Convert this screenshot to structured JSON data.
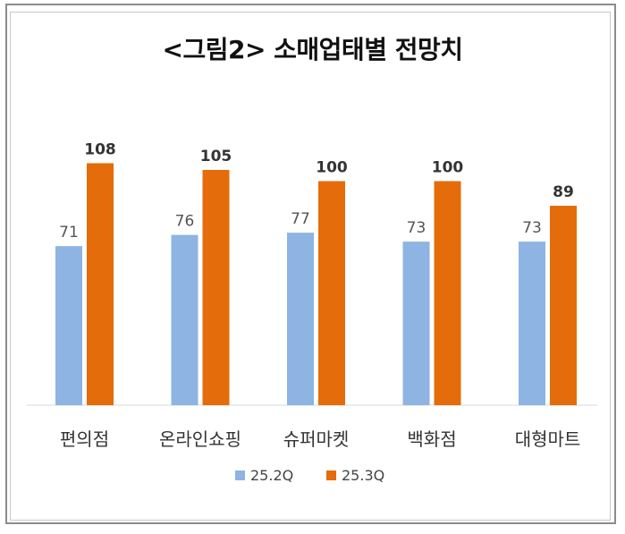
{
  "chart_data": {
    "type": "bar",
    "title": "<그림2> 소매업태별 전망치",
    "categories": [
      "편의점",
      "온라인쇼핑",
      "슈퍼마켓",
      "백화점",
      "대형마트"
    ],
    "series": [
      {
        "name": "25.2Q",
        "values": [
          71,
          76,
          77,
          73,
          73
        ],
        "color": "#8db4e2"
      },
      {
        "name": "25.3Q",
        "values": [
          108,
          105,
          100,
          100,
          89
        ],
        "color": "#e46c0a"
      }
    ],
    "ylim": [
      0,
      120
    ],
    "grid": false,
    "legend": "bottom",
    "xlabel": "",
    "ylabel": ""
  }
}
